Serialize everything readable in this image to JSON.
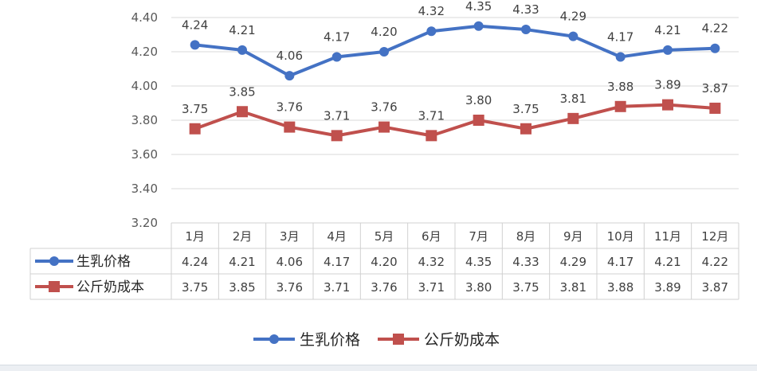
{
  "chart_data": {
    "type": "line",
    "title": "",
    "xlabel": "",
    "ylabel": "",
    "categories": [
      "1月",
      "2月",
      "3月",
      "4月",
      "5月",
      "6月",
      "7月",
      "8月",
      "9月",
      "10月",
      "11月",
      "12月"
    ],
    "ylim": [
      3.2,
      4.4
    ],
    "yticks": [
      "3.20",
      "3.40",
      "3.60",
      "3.80",
      "4.00",
      "4.20",
      "4.40"
    ],
    "grid": true,
    "legend_position": "bottom",
    "data_table": true,
    "series": [
      {
        "name": "生乳价格",
        "marker": "circle",
        "color": "#4472c4",
        "values": [
          4.24,
          4.21,
          4.06,
          4.17,
          4.2,
          4.32,
          4.35,
          4.33,
          4.29,
          4.17,
          4.21,
          4.22
        ],
        "labels": [
          "4.24",
          "4.21",
          "4.06",
          "4.17",
          "4.20",
          "4.32",
          "4.35",
          "4.33",
          "4.29",
          "4.17",
          "4.21",
          "4.22"
        ]
      },
      {
        "name": "公斤奶成本",
        "marker": "square",
        "color": "#c0504d",
        "values": [
          3.75,
          3.85,
          3.76,
          3.71,
          3.76,
          3.71,
          3.8,
          3.75,
          3.81,
          3.88,
          3.89,
          3.87
        ],
        "labels": [
          "3.75",
          "3.85",
          "3.76",
          "3.71",
          "3.76",
          "3.71",
          "3.80",
          "3.75",
          "3.81",
          "3.88",
          "3.89",
          "3.87"
        ]
      }
    ]
  }
}
